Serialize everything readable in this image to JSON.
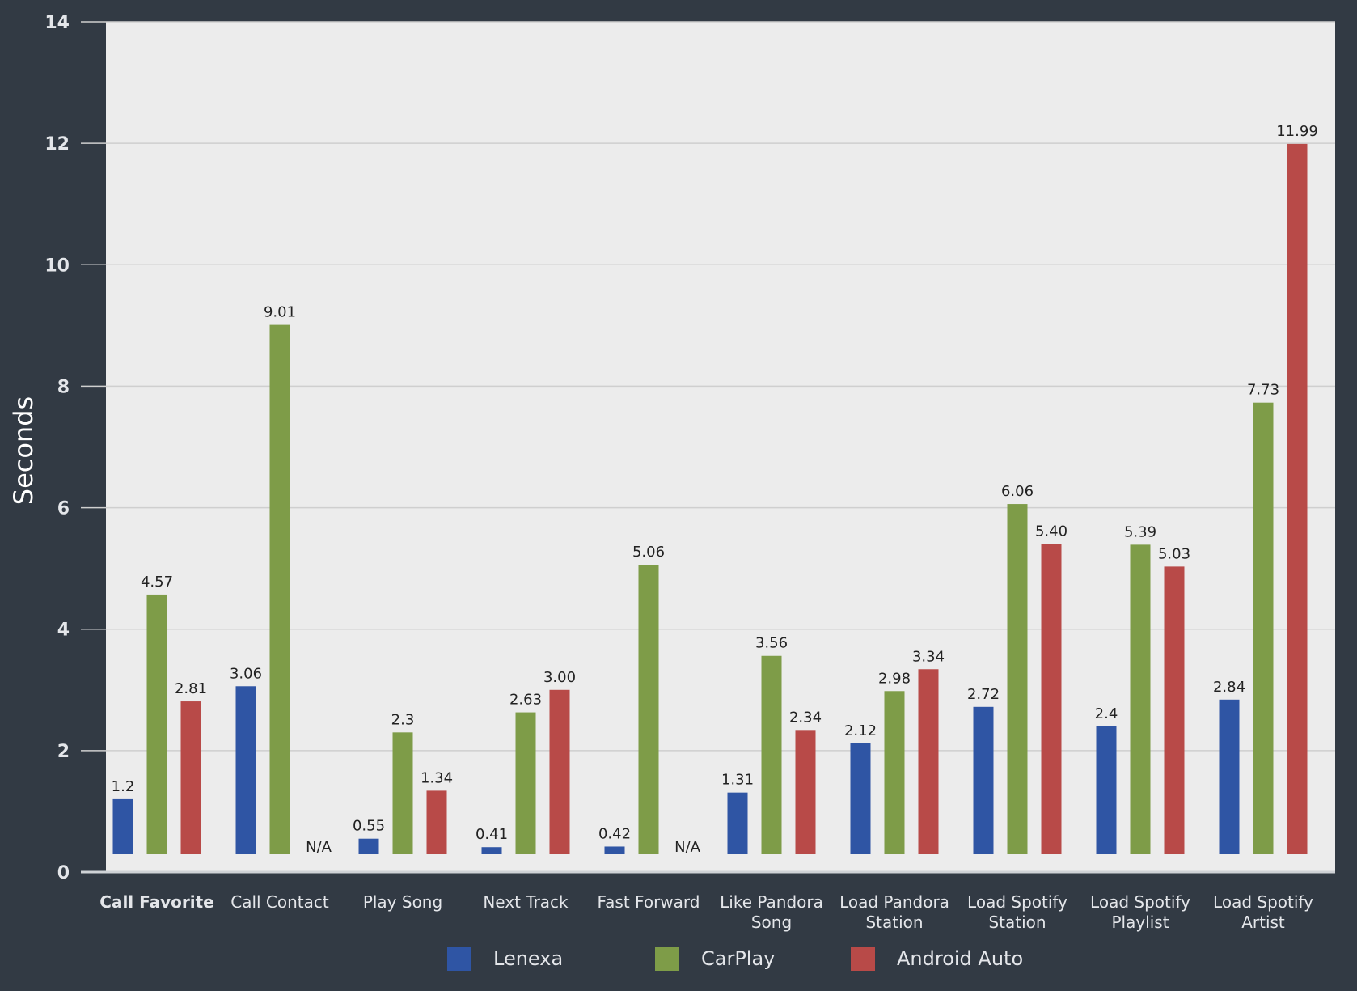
{
  "chart_data": {
    "type": "bar",
    "title": "",
    "xlabel": "",
    "ylabel": "Seconds",
    "ylim": [
      0,
      14
    ],
    "yticks": [
      "0",
      "2",
      "4",
      "6",
      "8",
      "10",
      "12",
      "14"
    ],
    "grid": true,
    "legend_position": "bottom",
    "categories": [
      [
        "Call Favorite"
      ],
      [
        "Call Contact"
      ],
      [
        "Play Song"
      ],
      [
        "Next Track"
      ],
      [
        "Fast Forward"
      ],
      [
        "Like Pandora",
        "Song"
      ],
      [
        "Load Pandora",
        "Station"
      ],
      [
        "Load Spotify",
        "Station"
      ],
      [
        "Load Spotify",
        "Playlist"
      ],
      [
        "Load Spotify",
        "Artist"
      ]
    ],
    "series": [
      {
        "name": "Lenexa",
        "color": "#2f55a4",
        "values": [
          1.2,
          3.06,
          0.55,
          0.41,
          0.42,
          1.31,
          2.12,
          2.72,
          2.4,
          2.84
        ],
        "labels": [
          "1.2",
          "3.06",
          "0.55",
          "0.41",
          "0.42",
          "1.31",
          "2.12",
          "2.72",
          "2.4",
          "2.84"
        ]
      },
      {
        "name": "CarPlay",
        "color": "#7e9c48",
        "values": [
          4.57,
          9.01,
          2.3,
          2.63,
          5.06,
          3.56,
          2.98,
          6.06,
          5.39,
          7.73
        ],
        "labels": [
          "4.57",
          "9.01",
          "2.3",
          "2.63",
          "5.06",
          "3.56",
          "2.98",
          "6.06",
          "5.39",
          "7.73"
        ]
      },
      {
        "name": "Android Auto",
        "color": "#b84a48",
        "values": [
          2.81,
          null,
          1.34,
          3.0,
          null,
          2.34,
          3.34,
          5.4,
          5.03,
          11.99
        ],
        "labels": [
          "2.81",
          "N/A",
          "1.34",
          "3.00",
          "N/A",
          "2.34",
          "3.34",
          "5.40",
          "5.03",
          "11.99"
        ]
      }
    ]
  }
}
